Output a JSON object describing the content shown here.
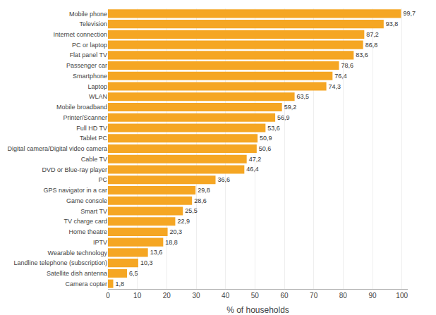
{
  "chart_data": {
    "type": "bar",
    "orientation": "horizontal",
    "categories": [
      "Camera copter",
      "Satellite dish antenna",
      "Landline telephone (subscription)",
      "Wearable technology",
      "IPTV",
      "Home theatre",
      "TV charge card",
      "Smart TV",
      "Game console",
      "GPS navigator in a car",
      "PC",
      "DVD or Blue-ray player",
      "Cable TV",
      "Digital camera/Digital video camera",
      "Tablet PC",
      "Full HD TV",
      "Printer/Scanner",
      "Mobile broadband",
      "WLAN",
      "Laptop",
      "Smartphone",
      "Passenger car",
      "Flat panel TV",
      "PC or laptop",
      "Internet connection",
      "Television",
      "Mobile phone"
    ],
    "values": [
      1.8,
      6.5,
      10.3,
      13.6,
      18.8,
      20.3,
      22.9,
      25.5,
      28.6,
      29.8,
      36.6,
      46.4,
      47.2,
      50.6,
      50.9,
      53.6,
      56.9,
      59.2,
      63.5,
      74.3,
      76.4,
      78.6,
      83.6,
      86.8,
      87.2,
      93.8,
      99.7
    ],
    "value_labels": [
      "1,8",
      "6,5",
      "10,3",
      "13,6",
      "18,8",
      "20,3",
      "22,9",
      "25,5",
      "28,6",
      "29,8",
      "36,6",
      "46,4",
      "47,2",
      "50,6",
      "50,9",
      "53,6",
      "56,9",
      "59,2",
      "63,5",
      "74,3",
      "76,4",
      "78,6",
      "83,6",
      "86,8",
      "87,2",
      "93,8",
      "99,7"
    ],
    "color": "#F5A623",
    "xlabel": "% of households",
    "xlim": [
      0,
      102
    ],
    "xticks": [
      0,
      10,
      20,
      30,
      40,
      50,
      60,
      70,
      80,
      90,
      100
    ],
    "grid": true,
    "data_labels": true
  }
}
